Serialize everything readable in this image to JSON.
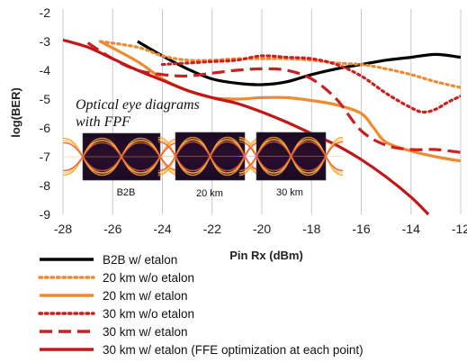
{
  "chart_data": {
    "type": "line",
    "xlabel": "Pin Rx (dBm)",
    "ylabel": "log(BER)",
    "xlim": [
      -28,
      -12
    ],
    "ylim": [
      -9,
      -2
    ],
    "x_ticks": [
      "-28",
      "-26",
      "-24",
      "-22",
      "-20",
      "-18",
      "-16",
      "-14",
      "-12"
    ],
    "y_ticks": [
      "-2",
      "-3",
      "-4",
      "-5",
      "-6",
      "-7",
      "-8",
      "-9"
    ],
    "grid": "vertical",
    "legend_position": "bottom",
    "series": [
      {
        "name": "B2B w/ etalon",
        "color": "#000000",
        "dash": "solid",
        "x": [
          -25,
          -24,
          -23,
          -22,
          -21,
          -20,
          -19,
          -18,
          -17,
          -16,
          -15,
          -14,
          -13,
          -12
        ],
        "y": [
          -3.0,
          -3.5,
          -3.95,
          -4.3,
          -4.45,
          -4.5,
          -4.4,
          -4.15,
          -3.95,
          -3.8,
          -3.65,
          -3.55,
          -3.45,
          -3.55
        ]
      },
      {
        "name": "20 km w/o etalon",
        "color": "#f08a30",
        "dash": "dot",
        "x": [
          -26.5,
          -25,
          -24,
          -23,
          -22,
          -21,
          -20,
          -19,
          -18,
          -17,
          -16,
          -15,
          -14,
          -13,
          -12
        ],
        "y": [
          -3.0,
          -3.2,
          -3.5,
          -3.65,
          -3.65,
          -3.6,
          -3.6,
          -3.6,
          -3.65,
          -3.75,
          -3.8,
          -3.95,
          -4.15,
          -4.4,
          -4.6
        ]
      },
      {
        "name": "20 km w/ etalon",
        "color": "#f08a30",
        "dash": "solid",
        "x": [
          -26.5,
          -25,
          -24,
          -23,
          -22,
          -21,
          -20,
          -19,
          -18,
          -17,
          -16,
          -15.5,
          -15,
          -14,
          -13,
          -12
        ],
        "y": [
          -3.0,
          -3.7,
          -4.3,
          -4.7,
          -4.95,
          -5.0,
          -4.95,
          -4.95,
          -5.05,
          -5.2,
          -5.5,
          -6.0,
          -6.5,
          -6.8,
          -7.0,
          -7.15
        ]
      },
      {
        "name": "30 km w/o etalon",
        "color": "#cc1f1f",
        "dash": "dot",
        "x": [
          -24,
          -23,
          -22,
          -21,
          -20,
          -19,
          -18,
          -17,
          -16,
          -15,
          -14,
          -13.5,
          -13,
          -12.5,
          -12
        ],
        "y": [
          -3.8,
          -3.75,
          -3.7,
          -3.65,
          -3.5,
          -3.55,
          -3.6,
          -3.8,
          -4.2,
          -4.8,
          -5.3,
          -5.45,
          -5.35,
          -5.1,
          -4.9
        ]
      },
      {
        "name": "30 km w/ etalon",
        "color": "#cc1f1f",
        "dash": "dash",
        "x": [
          -27,
          -26,
          -25,
          -24,
          -23,
          -22,
          -21,
          -20,
          -19,
          -18,
          -17,
          -16,
          -15,
          -14,
          -13,
          -12
        ],
        "y": [
          -3.05,
          -3.6,
          -4.0,
          -4.15,
          -4.2,
          -4.1,
          -4.0,
          -3.95,
          -4.0,
          -4.3,
          -5.0,
          -6.1,
          -6.6,
          -6.75,
          -6.75,
          -6.85
        ]
      },
      {
        "name": "30 km w/ etalon (FFE optimization at each point)",
        "color": "#c01818",
        "dash": "solid",
        "x": [
          -28,
          -27,
          -26,
          -25,
          -24,
          -23,
          -22,
          -21,
          -20,
          -19,
          -18,
          -17,
          -16,
          -15,
          -14,
          -13.3
        ],
        "y": [
          -2.95,
          -3.2,
          -3.6,
          -4.0,
          -4.35,
          -4.7,
          -4.95,
          -5.15,
          -5.45,
          -5.8,
          -6.2,
          -6.6,
          -7.1,
          -7.7,
          -8.4,
          -9.0
        ]
      }
    ],
    "annotations": [
      "Optical eye diagrams",
      "with FPF"
    ],
    "insets": [
      {
        "label": "B2B"
      },
      {
        "label": "20 km"
      },
      {
        "label": "30 km"
      }
    ]
  }
}
